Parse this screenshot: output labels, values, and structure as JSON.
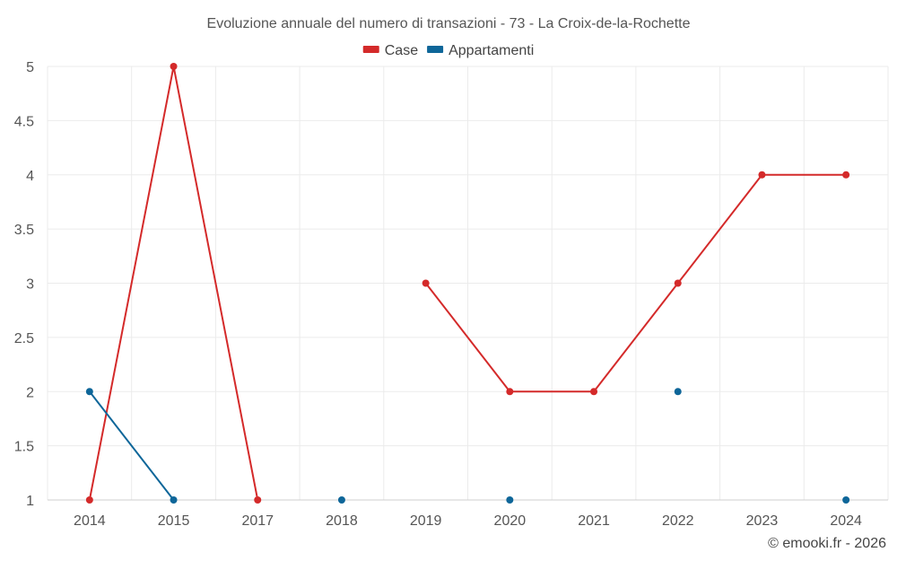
{
  "chart_data": {
    "type": "line",
    "title": "Evoluzione annuale del numero di transazioni - 73 - La Croix-de-la-Rochette",
    "categories": [
      "2014",
      "2015",
      "2017",
      "2018",
      "2019",
      "2020",
      "2021",
      "2022",
      "2023",
      "2024"
    ],
    "ylim": [
      1,
      5
    ],
    "yticks": [
      1,
      1.5,
      2,
      2.5,
      3,
      3.5,
      4,
      4.5,
      5
    ],
    "ytick_labels": [
      "1",
      "1.5",
      "2",
      "2.5",
      "3",
      "3.5",
      "4",
      "4.5",
      "5"
    ],
    "grid": true,
    "legend_position": "top-center",
    "series": [
      {
        "name": "Case",
        "color": "#d42a2a",
        "values": [
          1,
          5,
          1,
          null,
          3,
          2,
          2,
          3,
          4,
          4
        ]
      },
      {
        "name": "Appartamenti",
        "color": "#0e6699",
        "values": [
          2,
          1,
          null,
          1,
          null,
          1,
          null,
          2,
          null,
          1
        ]
      }
    ]
  },
  "credit": "© emooki.fr - 2026"
}
